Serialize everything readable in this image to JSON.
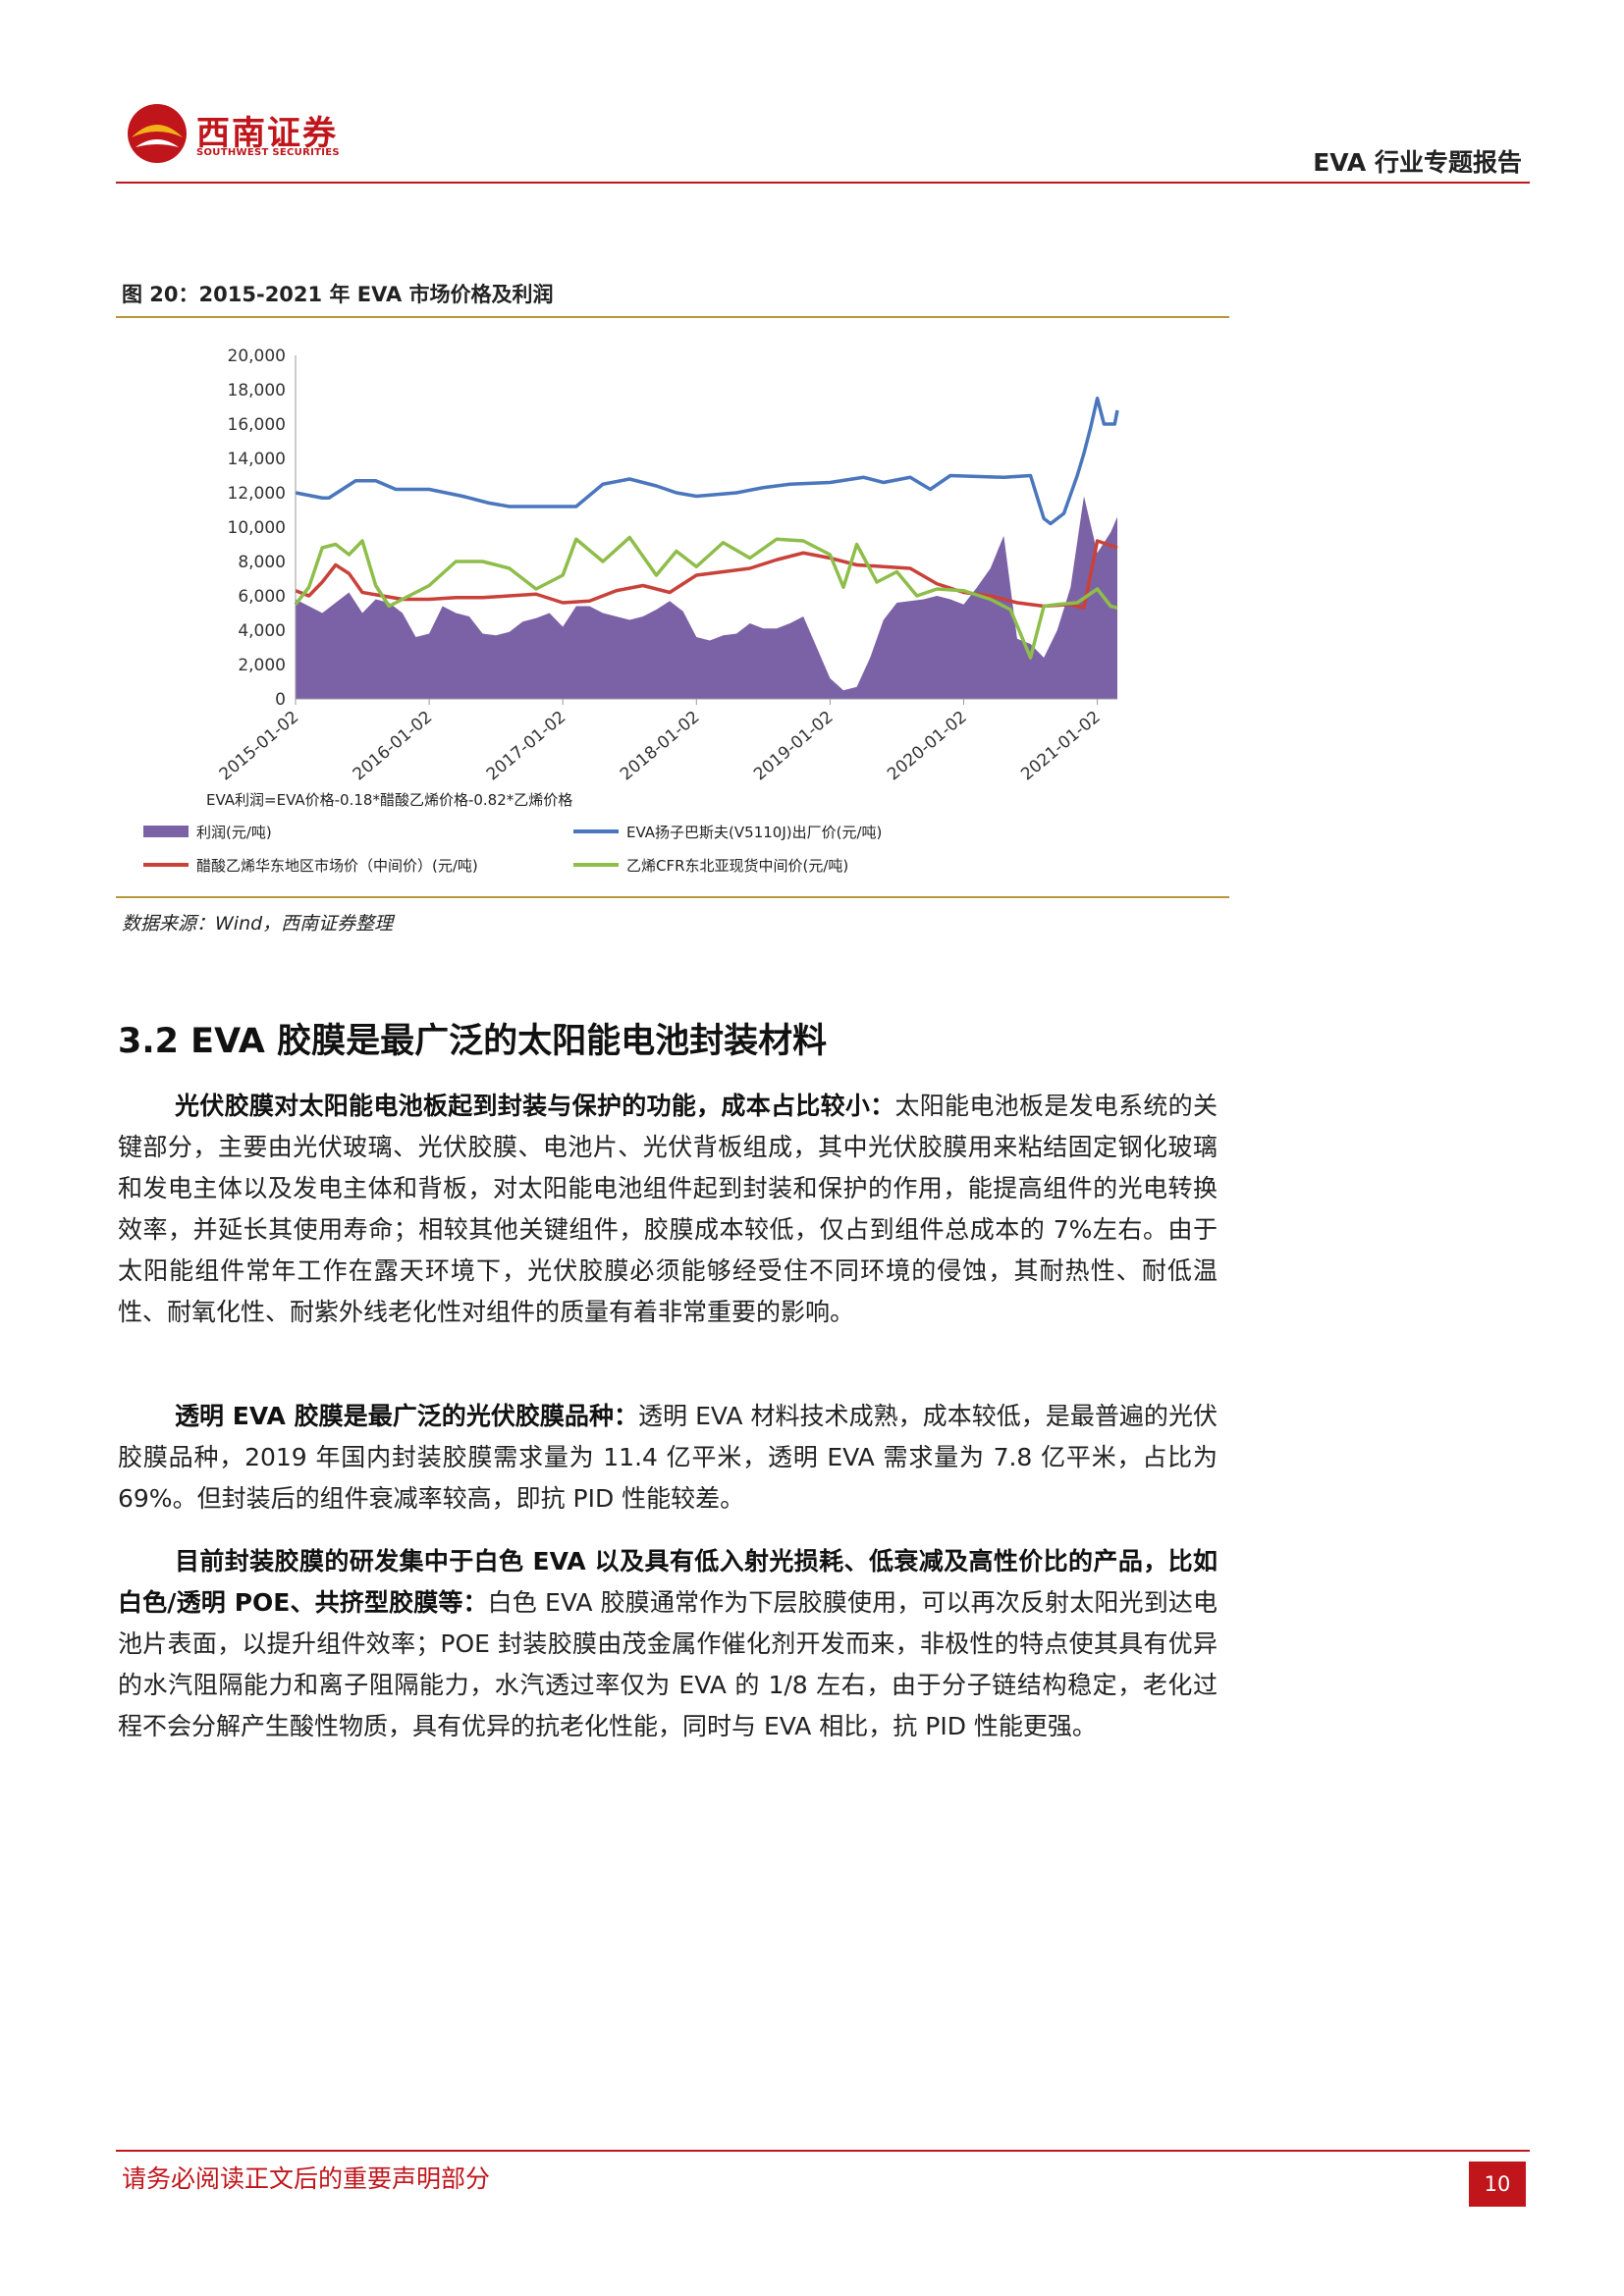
{
  "header": {
    "brand_cn": "西南证券",
    "brand_en": "SOUTHWEST SECURITIES",
    "report_title": "EVA 行业专题报告"
  },
  "figure": {
    "caption": "图 20：2015-2021 年 EVA 市场价格及利润",
    "source": "数据来源：Wind，西南证券整理"
  },
  "chart_data": {
    "type": "area",
    "title": "",
    "xlabel": "",
    "ylabel": "",
    "ylim": [
      0,
      20000
    ],
    "y_ticks": [
      "20,000",
      "18,000",
      "16,000",
      "14,000",
      "12,000",
      "10,000",
      "8,000",
      "6,000",
      "4,000",
      "2,000",
      "0"
    ],
    "x_ticks": [
      "2015-01-02",
      "2016-01-02",
      "2017-01-02",
      "2018-01-02",
      "2019-01-02",
      "2020-01-02",
      "2021-01-02"
    ],
    "x_range": [
      2015.0,
      2021.15
    ],
    "formula_note": "EVA利润=EVA价格-0.18*醋酸乙烯价格-0.82*乙烯价格",
    "grid": false,
    "legend_position": "bottom",
    "series": [
      {
        "name": "利润(元/吨)",
        "kind": "area",
        "color": "#7b62a6",
        "x": [
          2015.0,
          2015.1,
          2015.2,
          2015.3,
          2015.4,
          2015.5,
          2015.6,
          2015.7,
          2015.8,
          2015.9,
          2016.0,
          2016.1,
          2016.2,
          2016.3,
          2016.4,
          2016.5,
          2016.6,
          2016.7,
          2016.8,
          2016.9,
          2017.0,
          2017.1,
          2017.2,
          2017.3,
          2017.4,
          2017.5,
          2017.6,
          2017.7,
          2017.8,
          2017.9,
          2018.0,
          2018.1,
          2018.2,
          2018.3,
          2018.4,
          2018.5,
          2018.6,
          2018.7,
          2018.8,
          2018.9,
          2019.0,
          2019.1,
          2019.2,
          2019.3,
          2019.4,
          2019.5,
          2019.6,
          2019.7,
          2019.8,
          2019.9,
          2020.0,
          2020.1,
          2020.2,
          2020.3,
          2020.4,
          2020.5,
          2020.6,
          2020.7,
          2020.8,
          2020.9,
          2021.0,
          2021.1,
          2021.15
        ],
        "values": [
          5800,
          5400,
          5000,
          5600,
          6200,
          5000,
          5800,
          5600,
          5000,
          3600,
          3800,
          5400,
          5000,
          4800,
          3800,
          3700,
          3900,
          4500,
          4700,
          5000,
          4200,
          5400,
          5400,
          5000,
          4800,
          4600,
          4800,
          5200,
          5700,
          5100,
          3600,
          3400,
          3700,
          3800,
          4400,
          4100,
          4100,
          4400,
          4800,
          3000,
          1200,
          500,
          700,
          2400,
          4600,
          5600,
          5700,
          5800,
          6000,
          5800,
          5500,
          6500,
          7600,
          9500,
          3500,
          3200,
          2400,
          4000,
          6500,
          11800,
          8500,
          9700,
          10600
        ]
      },
      {
        "name": "EVA扬子巴斯夫(V5110J)出厂价(元/吨)",
        "kind": "line",
        "color": "#4a76bd",
        "x": [
          2015.0,
          2015.2,
          2015.25,
          2015.45,
          2015.6,
          2015.75,
          2016.0,
          2016.25,
          2016.45,
          2016.6,
          2017.1,
          2017.3,
          2017.5,
          2017.7,
          2017.85,
          2018.0,
          2018.3,
          2018.5,
          2018.7,
          2019.0,
          2019.25,
          2019.4,
          2019.6,
          2019.75,
          2019.9,
          2020.3,
          2020.5,
          2020.6,
          2020.65,
          2020.75,
          2020.85,
          2020.9,
          2020.95,
          2021.0,
          2021.05,
          2021.13,
          2021.15
        ],
        "values": [
          12000,
          11700,
          11700,
          12700,
          12700,
          12200,
          12200,
          11800,
          11400,
          11200,
          11200,
          12500,
          12800,
          12400,
          12000,
          11800,
          12000,
          12300,
          12500,
          12600,
          12900,
          12600,
          12900,
          12200,
          13000,
          12900,
          13000,
          10500,
          10200,
          10800,
          13000,
          14300,
          15800,
          17500,
          16000,
          16000,
          16800
        ]
      },
      {
        "name": "醋酸乙烯华东地区市场价（中间价）(元/吨)",
        "kind": "line",
        "color": "#c8423a",
        "x": [
          2015.0,
          2015.1,
          2015.2,
          2015.3,
          2015.4,
          2015.5,
          2015.65,
          2015.8,
          2016.0,
          2016.2,
          2016.4,
          2016.6,
          2016.8,
          2017.0,
          2017.2,
          2017.4,
          2017.6,
          2017.8,
          2018.0,
          2018.2,
          2018.4,
          2018.6,
          2018.8,
          2019.0,
          2019.2,
          2019.4,
          2019.6,
          2019.8,
          2020.0,
          2020.2,
          2020.4,
          2020.6,
          2020.8,
          2020.9,
          2021.0,
          2021.15
        ],
        "values": [
          6300,
          6000,
          6800,
          7800,
          7300,
          6200,
          6000,
          5800,
          5800,
          5900,
          5900,
          6000,
          6100,
          5600,
          5700,
          6300,
          6600,
          6200,
          7200,
          7400,
          7600,
          8100,
          8500,
          8200,
          7800,
          7700,
          7600,
          6700,
          6200,
          6000,
          5600,
          5400,
          5500,
          5300,
          9200,
          8800
        ]
      },
      {
        "name": "乙烯CFR东北亚现货中间价(元/吨)",
        "kind": "line",
        "color": "#8ebd4a",
        "x": [
          2015.0,
          2015.1,
          2015.2,
          2015.3,
          2015.4,
          2015.5,
          2015.6,
          2015.7,
          2015.8,
          2016.0,
          2016.2,
          2016.4,
          2016.6,
          2016.8,
          2017.0,
          2017.1,
          2017.3,
          2017.5,
          2017.7,
          2017.85,
          2018.0,
          2018.2,
          2018.4,
          2018.6,
          2018.8,
          2019.0,
          2019.1,
          2019.2,
          2019.35,
          2019.5,
          2019.65,
          2019.8,
          2020.0,
          2020.2,
          2020.35,
          2020.5,
          2020.6,
          2020.7,
          2020.85,
          2021.0,
          2021.1,
          2021.15
        ],
        "values": [
          5500,
          6500,
          8800,
          9000,
          8400,
          9200,
          6600,
          5400,
          5800,
          6600,
          8000,
          8000,
          7600,
          6400,
          7200,
          9300,
          8000,
          9400,
          7200,
          8600,
          7700,
          9100,
          8200,
          9300,
          9200,
          8400,
          6500,
          9000,
          6800,
          7400,
          6000,
          6400,
          6300,
          5800,
          5200,
          2400,
          5400,
          5500,
          5600,
          6400,
          5400,
          5300
        ]
      }
    ]
  },
  "section": {
    "title": "3.2 EVA 胶膜是最广泛的太阳能电池封装材料"
  },
  "paragraphs": {
    "p1_bold": "光伏胶膜对太阳能电池板起到封装与保护的功能，成本占比较小：",
    "p1_text": "太阳能电池板是发电系统的关键部分，主要由光伏玻璃、光伏胶膜、电池片、光伏背板组成，其中光伏胶膜用来粘结固定钢化玻璃和发电主体以及发电主体和背板，对太阳能电池组件起到封装和保护的作用，能提高组件的光电转换效率，并延长其使用寿命；相较其他关键组件，胶膜成本较低，仅占到组件总成本的 7%左右。由于太阳能组件常年工作在露天环境下，光伏胶膜必须能够经受住不同环境的侵蚀，其耐热性、耐低温性、耐氧化性、耐紫外线老化性对组件的质量有着非常重要的影响。",
    "p2_bold": "透明 EVA 胶膜是最广泛的光伏胶膜品种：",
    "p2_text": "透明 EVA 材料技术成熟，成本较低，是最普遍的光伏胶膜品种，2019 年国内封装胶膜需求量为 11.4 亿平米，透明 EVA 需求量为 7.8 亿平米，占比为 69%。但封装后的组件衰减率较高，即抗 PID 性能较差。",
    "p3_bold": "目前封装胶膜的研发集中于白色 EVA 以及具有低入射光损耗、低衰减及高性价比的产品，比如白色/透明 POE、共挤型胶膜等：",
    "p3_text": "白色 EVA 胶膜通常作为下层胶膜使用，可以再次反射太阳光到达电池片表面，以提升组件效率；POE 封装胶膜由茂金属作催化剂开发而来，非极性的特点使其具有优异的水汽阻隔能力和离子阻隔能力，水汽透过率仅为 EVA 的 1/8 左右，由于分子链结构稳定，老化过程不会分解产生酸性物质，具有优异的抗老化性能，同时与 EVA 相比，抗 PID 性能更强。"
  },
  "footer": {
    "disclaimer": "请务必阅读正文后的重要声明部分",
    "page_number": "10"
  }
}
